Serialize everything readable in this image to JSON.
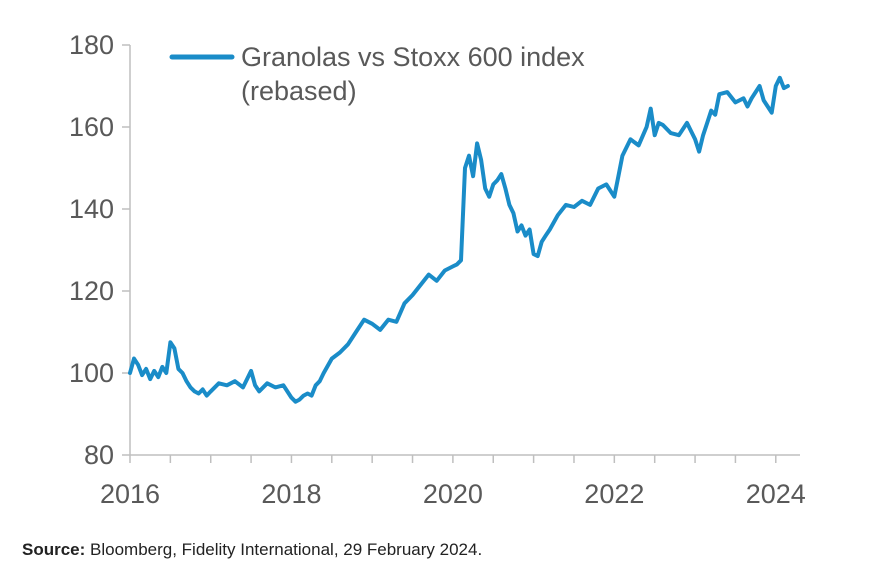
{
  "chart_data": {
    "type": "line",
    "legend": [
      "Granolas vs Stoxx 600 index",
      "(rebased)"
    ],
    "legend_position": "top-left",
    "grid": false,
    "x_ticks": [
      "2016",
      "2018",
      "2020",
      "2022",
      "2024"
    ],
    "y_ticks": [
      "80",
      "100",
      "120",
      "140",
      "160",
      "180"
    ],
    "xlim": [
      2016.0,
      2024.3
    ],
    "ylim": [
      80,
      180
    ],
    "color": "#1A8CC8",
    "series": [
      {
        "name": "Granolas vs Stoxx 600 index (rebased)",
        "x": [
          2016.0,
          2016.05,
          2016.1,
          2016.15,
          2016.2,
          2016.25,
          2016.3,
          2016.35,
          2016.4,
          2016.45,
          2016.5,
          2016.55,
          2016.6,
          2016.65,
          2016.7,
          2016.75,
          2016.8,
          2016.85,
          2016.9,
          2016.95,
          2017.0,
          2017.1,
          2017.2,
          2017.3,
          2017.4,
          2017.5,
          2017.55,
          2017.6,
          2017.7,
          2017.8,
          2017.9,
          2018.0,
          2018.05,
          2018.1,
          2018.15,
          2018.2,
          2018.25,
          2018.3,
          2018.35,
          2018.4,
          2018.5,
          2018.6,
          2018.7,
          2018.8,
          2018.9,
          2019.0,
          2019.1,
          2019.2,
          2019.3,
          2019.4,
          2019.5,
          2019.6,
          2019.7,
          2019.8,
          2019.9,
          2020.0,
          2020.05,
          2020.1,
          2020.15,
          2020.2,
          2020.25,
          2020.3,
          2020.35,
          2020.4,
          2020.45,
          2020.5,
          2020.55,
          2020.6,
          2020.65,
          2020.7,
          2020.75,
          2020.8,
          2020.85,
          2020.9,
          2020.95,
          2021.0,
          2021.05,
          2021.1,
          2021.15,
          2021.2,
          2021.3,
          2021.4,
          2021.5,
          2021.6,
          2021.7,
          2021.8,
          2021.9,
          2022.0,
          2022.05,
          2022.1,
          2022.2,
          2022.3,
          2022.4,
          2022.45,
          2022.5,
          2022.55,
          2022.6,
          2022.7,
          2022.8,
          2022.9,
          2023.0,
          2023.05,
          2023.1,
          2023.15,
          2023.2,
          2023.25,
          2023.3,
          2023.4,
          2023.5,
          2023.6,
          2023.65,
          2023.7,
          2023.8,
          2023.85,
          2023.9,
          2023.95,
          2024.0,
          2024.05,
          2024.1,
          2024.15
        ],
        "values": [
          100,
          103.5,
          102,
          99.5,
          101,
          98.5,
          100.5,
          99,
          101.5,
          100,
          107.5,
          106,
          101,
          100,
          98,
          96.5,
          95.5,
          95,
          96,
          94.5,
          95.5,
          97.5,
          97,
          98,
          96.5,
          100.5,
          97,
          95.5,
          97.5,
          96.5,
          97,
          94,
          93,
          93.5,
          94.5,
          95,
          94.5,
          97,
          98,
          100,
          103.5,
          105,
          107,
          110,
          113,
          112,
          110.5,
          113,
          112.5,
          117,
          119,
          121.5,
          124,
          122.5,
          125,
          126,
          126.5,
          127.5,
          150,
          153,
          148,
          156,
          152,
          145,
          143,
          146,
          147,
          148.5,
          145,
          141,
          139,
          134.5,
          136,
          133.5,
          135,
          129,
          128.5,
          132,
          133.5,
          135,
          138.5,
          141,
          140.5,
          142,
          141,
          145,
          146,
          143,
          148,
          153,
          157,
          155.5,
          160,
          164.5,
          158,
          161,
          160.5,
          158.5,
          158,
          161,
          157,
          154,
          158,
          161,
          164,
          163,
          168,
          168.5,
          166,
          167,
          165,
          167,
          170,
          166.5,
          165,
          163.5,
          170,
          172,
          169.5,
          170
        ]
      }
    ]
  },
  "footer": {
    "source_label": "Source:",
    "source_text": " Bloomberg, Fidelity International, 29 February 2024."
  }
}
